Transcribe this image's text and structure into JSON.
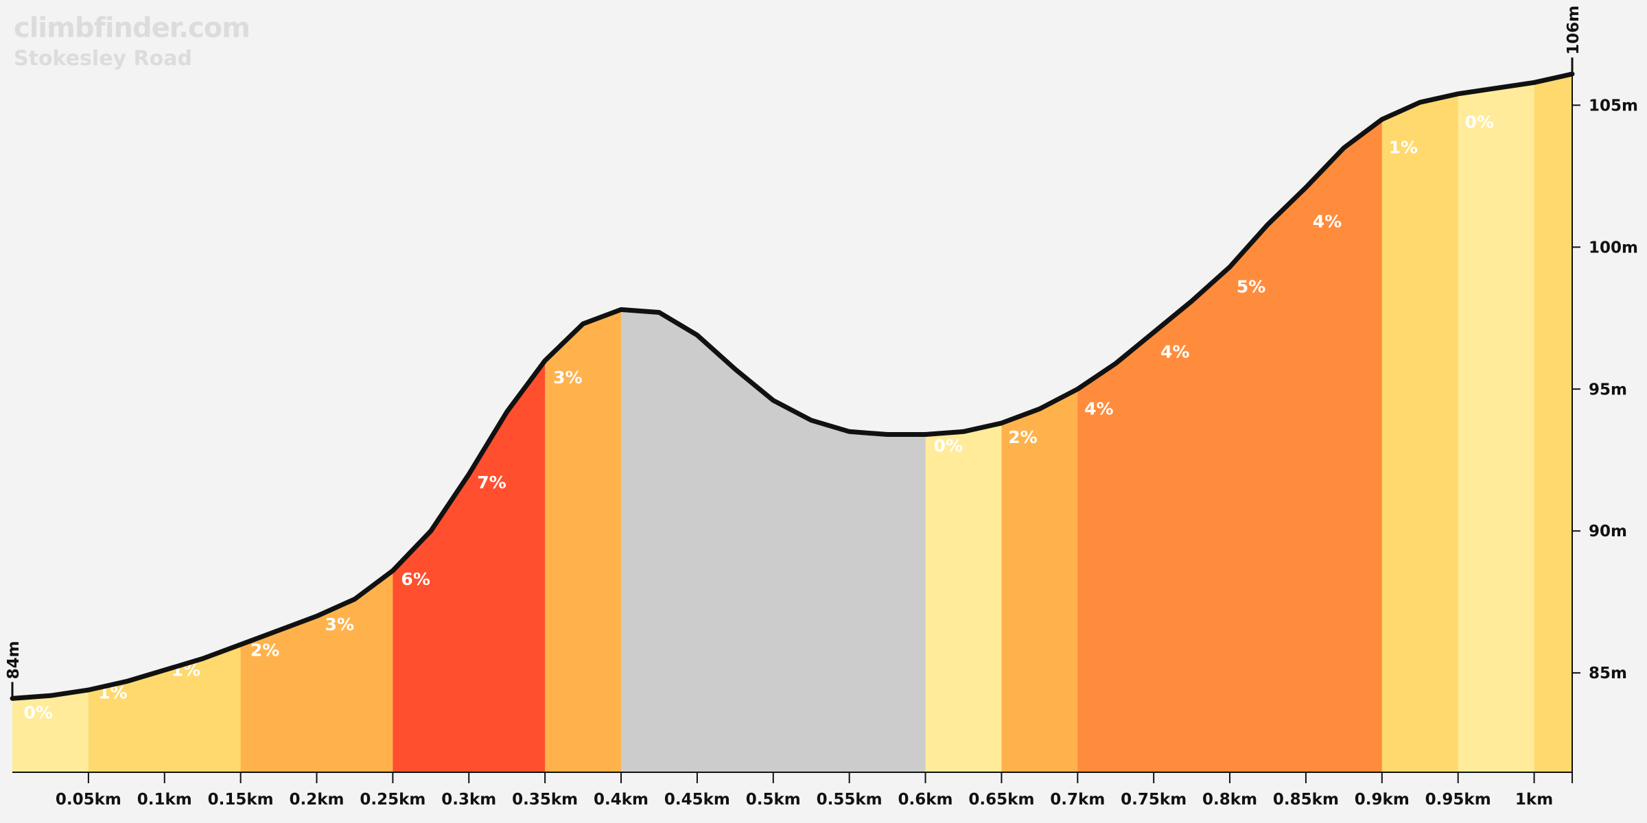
{
  "brand": "climbfinder.com",
  "title": "Stokesley Road",
  "colors": {
    "background": "#f3f3f3",
    "line": "#111111",
    "grade_0": "#ffeb9a",
    "grade_1": "#ffd96e",
    "grade_2_3": "#ffb24c",
    "grade_4_5": "#ff8c3c",
    "grade_6_7": "#ff4f2e",
    "descent": "#cccccc"
  },
  "chart_data": {
    "type": "area",
    "xlabel": "",
    "ylabel": "",
    "xlim": [
      0,
      1.025
    ],
    "ylim": [
      81.5,
      106
    ],
    "x_ticks": [
      0.05,
      0.1,
      0.15,
      0.2,
      0.25,
      0.3,
      0.35,
      0.4,
      0.45,
      0.5,
      0.55,
      0.6,
      0.65,
      0.7,
      0.75,
      0.8,
      0.85,
      0.9,
      0.95,
      1.0
    ],
    "x_tick_labels": [
      "0.05km",
      "0.1km",
      "0.15km",
      "0.2km",
      "0.25km",
      "0.3km",
      "0.35km",
      "0.4km",
      "0.45km",
      "0.5km",
      "0.55km",
      "0.6km",
      "0.65km",
      "0.7km",
      "0.75km",
      "0.8km",
      "0.85km",
      "0.9km",
      "0.95km",
      "1km"
    ],
    "y_ticks": [
      85,
      90,
      95,
      100,
      105
    ],
    "y_tick_labels": [
      "85m",
      "90m",
      "95m",
      "100m",
      "105m"
    ],
    "start_label": "84m",
    "end_label": "106m",
    "profile": {
      "x": [
        0,
        0.025,
        0.05,
        0.075,
        0.1,
        0.125,
        0.15,
        0.175,
        0.2,
        0.225,
        0.25,
        0.275,
        0.3,
        0.325,
        0.35,
        0.375,
        0.4,
        0.425,
        0.45,
        0.475,
        0.5,
        0.525,
        0.55,
        0.575,
        0.6,
        0.625,
        0.65,
        0.675,
        0.7,
        0.725,
        0.75,
        0.775,
        0.8,
        0.825,
        0.85,
        0.875,
        0.9,
        0.925,
        0.95,
        0.975,
        1.0,
        1.025
      ],
      "elevation": [
        84.1,
        84.2,
        84.4,
        84.7,
        85.1,
        85.5,
        86.0,
        86.5,
        87.0,
        87.6,
        88.6,
        90.0,
        92.0,
        94.2,
        96.0,
        97.3,
        97.8,
        97.7,
        96.9,
        95.7,
        94.6,
        93.9,
        93.5,
        93.4,
        93.4,
        93.5,
        93.8,
        94.3,
        95.0,
        95.9,
        97.0,
        98.1,
        99.3,
        100.8,
        102.1,
        103.5,
        104.5,
        105.1,
        105.4,
        105.6,
        105.8,
        106.1
      ]
    },
    "segments": [
      {
        "start": 0.0,
        "end": 0.05,
        "grade": "0%",
        "color": "#ffeb9a"
      },
      {
        "start": 0.05,
        "end": 0.15,
        "grade": "1%",
        "color": "#ffd96e"
      },
      {
        "start": 0.15,
        "end": 0.25,
        "grade": "2%",
        "color": "#ffb24c"
      },
      {
        "start": 0.25,
        "end": 0.35,
        "grade": "6%",
        "color": "#ff4f2e"
      },
      {
        "start": 0.35,
        "end": 0.4,
        "grade": "3%",
        "color": "#ffb24c"
      },
      {
        "start": 0.4,
        "end": 0.6,
        "grade": "",
        "color": "#cccccc"
      },
      {
        "start": 0.6,
        "end": 0.65,
        "grade": "0%",
        "color": "#ffeb9a"
      },
      {
        "start": 0.65,
        "end": 0.7,
        "grade": "2%",
        "color": "#ffb24c"
      },
      {
        "start": 0.7,
        "end": 0.9,
        "grade": "4%",
        "color": "#ff8c3c"
      },
      {
        "start": 0.9,
        "end": 0.95,
        "grade": "1%",
        "color": "#ffd96e"
      },
      {
        "start": 0.95,
        "end": 1.0,
        "grade": "0%",
        "color": "#ffeb9a"
      },
      {
        "start": 1.0,
        "end": 1.025,
        "grade": "",
        "color": "#ffd96e"
      }
    ],
    "grade_labels": [
      {
        "x": 0.017,
        "y": 83.4,
        "text": "0%"
      },
      {
        "x": 0.066,
        "y": 84.1,
        "text": "1%"
      },
      {
        "x": 0.114,
        "y": 84.9,
        "text": "1%"
      },
      {
        "x": 0.166,
        "y": 85.6,
        "text": "2%"
      },
      {
        "x": 0.215,
        "y": 86.5,
        "text": "3%"
      },
      {
        "x": 0.265,
        "y": 88.1,
        "text": "6%"
      },
      {
        "x": 0.315,
        "y": 91.5,
        "text": "7%"
      },
      {
        "x": 0.365,
        "y": 95.2,
        "text": "3%"
      },
      {
        "x": 0.615,
        "y": 92.8,
        "text": "0%"
      },
      {
        "x": 0.664,
        "y": 93.1,
        "text": "2%"
      },
      {
        "x": 0.714,
        "y": 94.1,
        "text": "4%"
      },
      {
        "x": 0.764,
        "y": 96.1,
        "text": "4%"
      },
      {
        "x": 0.814,
        "y": 98.4,
        "text": "5%"
      },
      {
        "x": 0.864,
        "y": 100.7,
        "text": "4%"
      },
      {
        "x": 0.914,
        "y": 103.3,
        "text": "1%"
      },
      {
        "x": 0.964,
        "y": 104.2,
        "text": "0%"
      }
    ]
  }
}
